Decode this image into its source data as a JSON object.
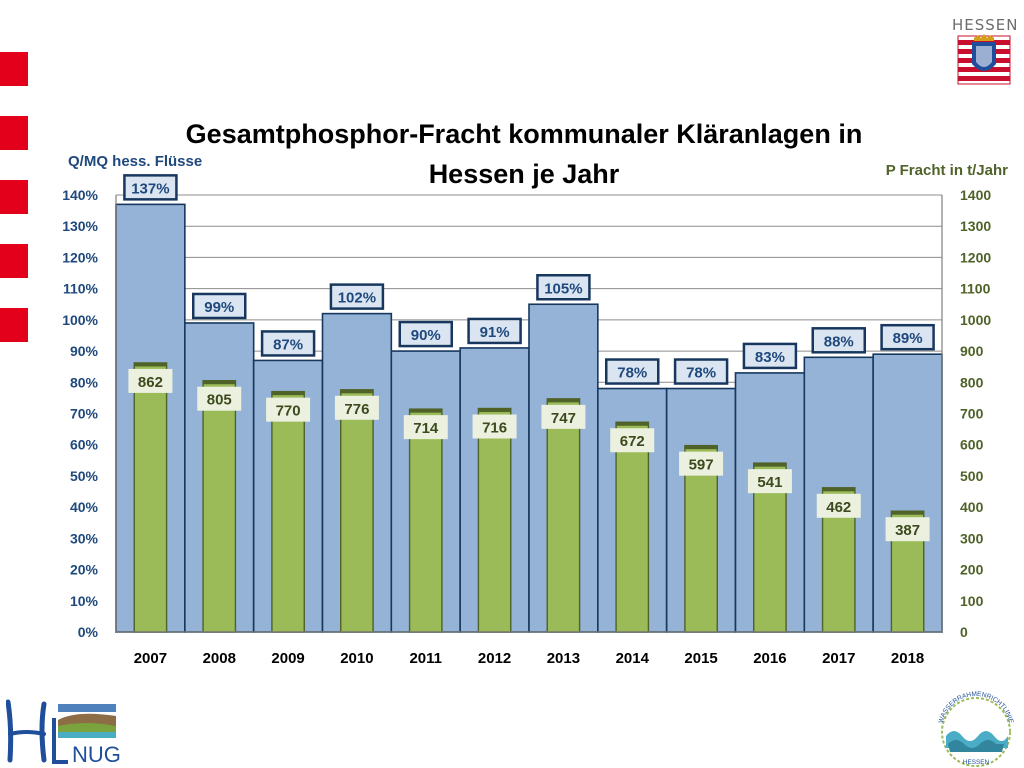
{
  "chart_data": {
    "type": "bar",
    "title": "Gesamtphosphor-Fracht kommunaler Kläranlagen in Hessen je Jahr",
    "title_lines": [
      "Gesamtphosphor-Fracht kommunaler Kläranlagen in",
      "Hessen je Jahr"
    ],
    "y_left_label": "Q/MQ hess. Flüsse",
    "y_right_label": "P Fracht in t/Jahr",
    "y_left_range": [
      0,
      140
    ],
    "y_right_range": [
      0,
      1400
    ],
    "y_left_ticks": [
      "0%",
      "10%",
      "20%",
      "30%",
      "40%",
      "50%",
      "60%",
      "70%",
      "80%",
      "90%",
      "100%",
      "110%",
      "120%",
      "130%",
      "140%"
    ],
    "y_right_ticks": [
      "0",
      "100",
      "200",
      "300",
      "400",
      "500",
      "600",
      "700",
      "800",
      "900",
      "1000",
      "1100",
      "1200",
      "1300",
      "1400"
    ],
    "grid": true,
    "categories": [
      "2007",
      "2008",
      "2009",
      "2010",
      "2011",
      "2012",
      "2013",
      "2014",
      "2015",
      "2016",
      "2017",
      "2018"
    ],
    "series": [
      {
        "axis": "left",
        "color": "#95b3d7",
        "values": [
          137,
          99,
          87,
          102,
          90,
          91,
          105,
          78,
          78,
          83,
          88,
          89
        ],
        "labels": [
          "137%",
          "99%",
          "87%",
          "102%",
          "90%",
          "91%",
          "105%",
          "78%",
          "78%",
          "83%",
          "88%",
          "89%"
        ]
      },
      {
        "axis": "right",
        "color": "#9bbb59",
        "values": [
          862,
          805,
          770,
          776,
          714,
          716,
          747,
          672,
          597,
          541,
          462,
          387
        ],
        "labels": [
          "862",
          "805",
          "770",
          "776",
          "714",
          "716",
          "747",
          "672",
          "597",
          "541",
          "462",
          "387"
        ]
      }
    ],
    "colors": {
      "left_axis_text": "#1f497d",
      "right_axis_text": "#4f6228",
      "title": "#000000"
    }
  },
  "branding": {
    "hessen_label": "HESSEN",
    "hlnug_logo": "HLNUG",
    "wrrl_logo_text": "WASSERRAHMENRICHTLINIE HESSEN",
    "accent_red": "#e3001b"
  }
}
